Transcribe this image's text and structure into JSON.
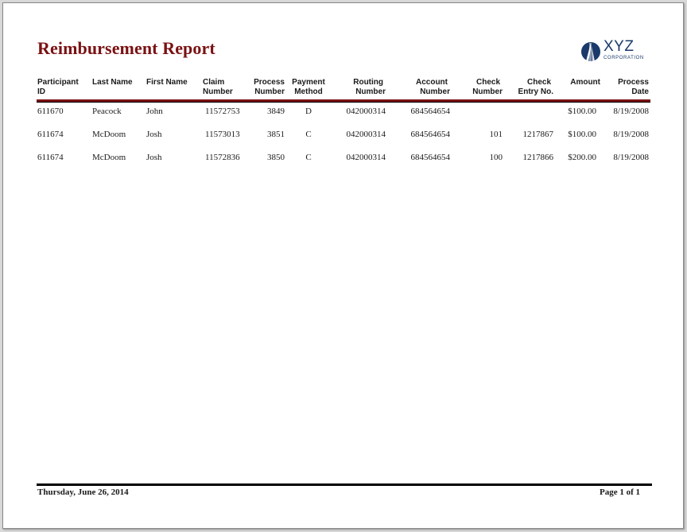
{
  "report": {
    "title": "Reimbursement Report",
    "logo_main": "XYZ",
    "logo_sub": "CORPORATION"
  },
  "columns": [
    {
      "l1": "Participant",
      "l2": "ID"
    },
    {
      "l1": "Last Name",
      "l2": ""
    },
    {
      "l1": "First Name",
      "l2": ""
    },
    {
      "l1": "Claim",
      "l2": "Number"
    },
    {
      "l1": "Process",
      "l2": "Number"
    },
    {
      "l1": "Payment",
      "l2": "Method"
    },
    {
      "l1": "Routing",
      "l2": "Number"
    },
    {
      "l1": "Account",
      "l2": "Number"
    },
    {
      "l1": "Check",
      "l2": "Number"
    },
    {
      "l1": "Check",
      "l2": "Entry No."
    },
    {
      "l1": "Amount",
      "l2": ""
    },
    {
      "l1": "Process",
      "l2": "Date"
    }
  ],
  "rows": [
    {
      "participant_id": "611670",
      "last_name": "Peacock",
      "first_name": "John",
      "claim_number": "11572753",
      "process_number": "3849",
      "payment_method": "D",
      "routing_number": "042000314",
      "account_number": "684564654",
      "check_number": "",
      "check_entry_no": "",
      "amount": "$100.00",
      "process_date": "8/19/2008"
    },
    {
      "participant_id": "611674",
      "last_name": "McDoom",
      "first_name": "Josh",
      "claim_number": "11573013",
      "process_number": "3851",
      "payment_method": "C",
      "routing_number": "042000314",
      "account_number": "684564654",
      "check_number": "101",
      "check_entry_no": "1217867",
      "amount": "$100.00",
      "process_date": "8/19/2008"
    },
    {
      "participant_id": "611674",
      "last_name": "McDoom",
      "first_name": "Josh",
      "claim_number": "11572836",
      "process_number": "3850",
      "payment_method": "C",
      "routing_number": "042000314",
      "account_number": "684564654",
      "check_number": "100",
      "check_entry_no": "1217866",
      "amount": "$200.00",
      "process_date": "8/19/2008"
    }
  ],
  "footer": {
    "date": "Thursday, June 26, 2014",
    "page": "Page 1 of 1"
  },
  "colors": {
    "title": "#7a1113",
    "logo": "#1b3a6b"
  }
}
